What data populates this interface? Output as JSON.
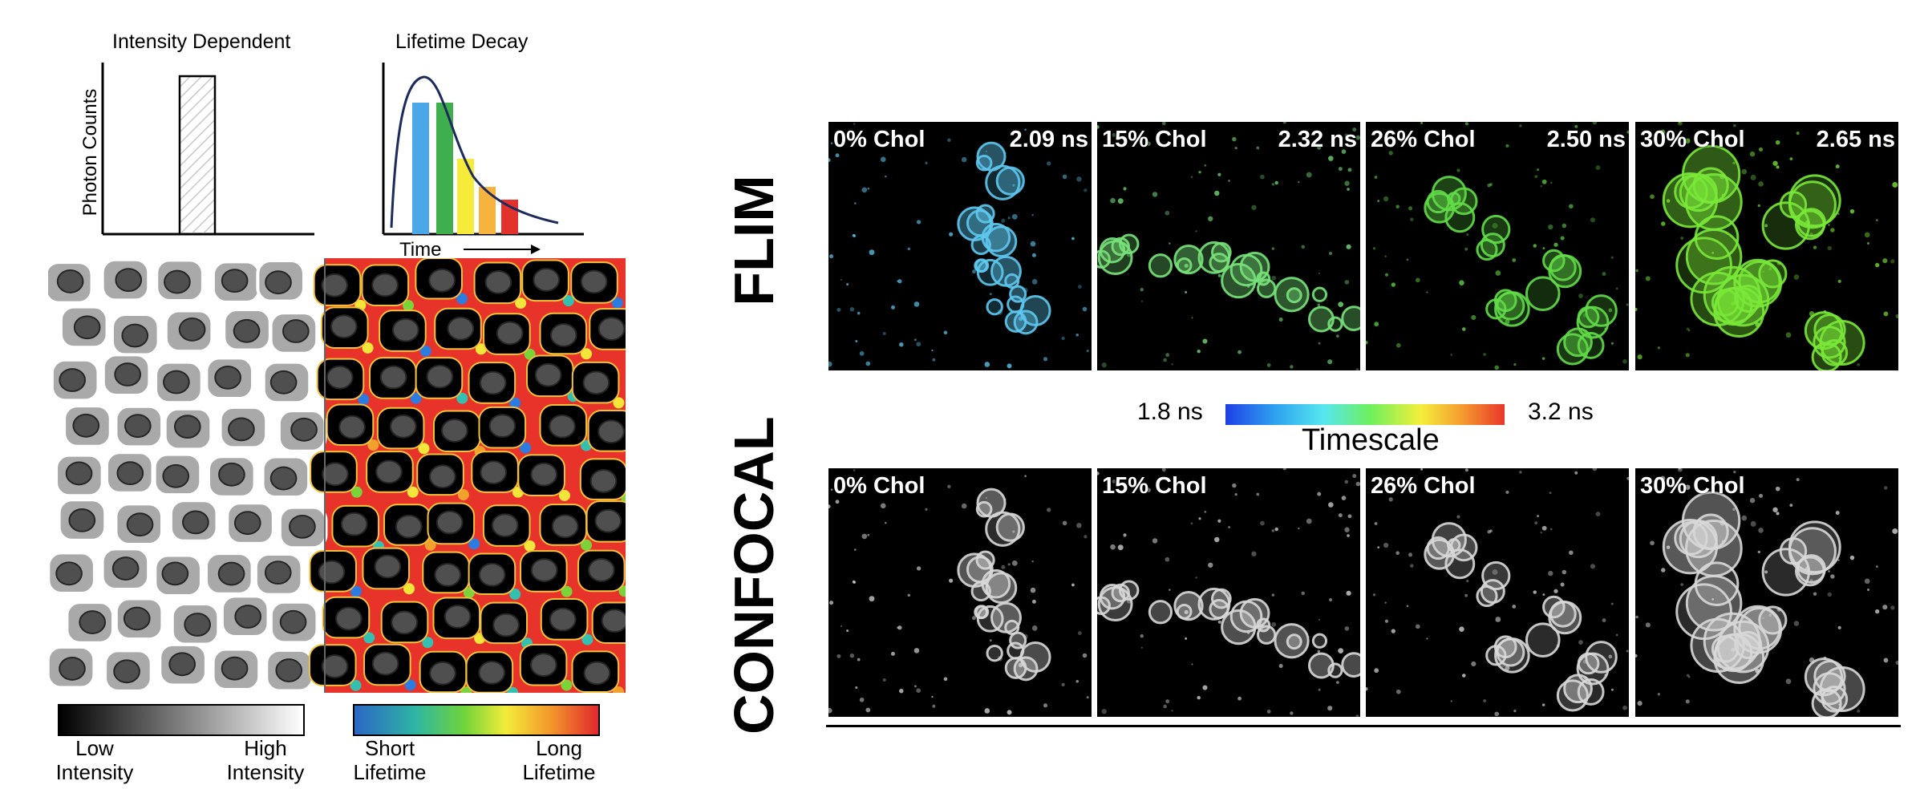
{
  "left_figure": {
    "histogram_titles": {
      "intensity": "Intensity Dependent",
      "lifetime": "Lifetime Decay"
    },
    "y_axis_label": "Photon Counts",
    "x_axis_label": "Time",
    "intensity_bar": {
      "left_label_1": "Low",
      "left_label_2": "Intensity",
      "right_label_1": "High",
      "right_label_2": "Intensity"
    },
    "lifetime_bar": {
      "left_label_1": "Short",
      "left_label_2": "Lifetime",
      "right_label_1": "Long",
      "right_label_2": "Lifetime"
    },
    "colors": {
      "short": "#2c5fd4",
      "mid": "#5ecb3c",
      "long": "#e5332a"
    }
  },
  "right_figure": {
    "rows": {
      "flim": "FLIM",
      "confocal": "CONFOCAL"
    },
    "timescale": {
      "min": "1.8 ns",
      "max": "3.2 ns",
      "label": "Timescale"
    },
    "flim_panels": [
      {
        "chol": "0% Chol",
        "lifetime": "2.09 ns",
        "color": "#5ec8ef"
      },
      {
        "chol": "15% Chol",
        "lifetime": "2.32 ns",
        "color": "#78e37a"
      },
      {
        "chol": "26% Chol",
        "lifetime": "2.50 ns",
        "color": "#62dc48"
      },
      {
        "chol": "30% Chol",
        "lifetime": "2.65 ns",
        "color": "#7ae838"
      }
    ],
    "confocal_panels": [
      {
        "chol": "0% Chol"
      },
      {
        "chol": "15% Chol"
      },
      {
        "chol": "26% Chol"
      },
      {
        "chol": "30% Chol"
      }
    ]
  }
}
